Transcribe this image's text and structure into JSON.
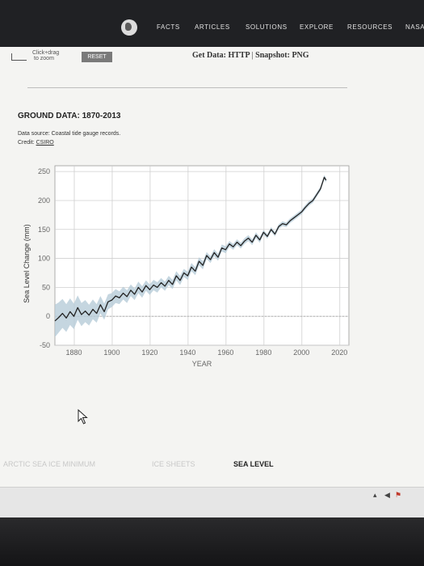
{
  "nav": {
    "items": [
      "FACTS",
      "ARTICLES",
      "SOLUTIONS",
      "EXPLORE",
      "RESOURCES",
      "NASA"
    ]
  },
  "toolbar": {
    "zoom_hint_line1": "Click+drag",
    "zoom_hint_line2": "to zoom",
    "reset_label": "RESET",
    "get_data_label": "Get Data:",
    "http_label": "HTTP",
    "separator": "|",
    "snapshot_label": "Snapshot:",
    "png_label": "PNG"
  },
  "panel": {
    "title": "GROUND DATA: 1870-2013",
    "source": "Data source: Coastal tide gauge records.",
    "credit_label": "Credit:",
    "credit_link": "CSIRO"
  },
  "chart_data": {
    "type": "line",
    "title": "",
    "xlabel": "YEAR",
    "ylabel": "Sea Level Change (mm)",
    "xlim": [
      1870,
      2025
    ],
    "ylim": [
      -50,
      260
    ],
    "x_ticks": [
      1880,
      1900,
      1920,
      1940,
      1960,
      1980,
      2000,
      2020
    ],
    "y_ticks": [
      -50,
      0,
      50,
      100,
      150,
      200,
      250
    ],
    "grid": true,
    "zero_reference_line": true,
    "series": [
      {
        "color": "#222222",
        "band_color": "#b7ccd8",
        "x": [
          1870,
          1872,
          1874,
          1876,
          1878,
          1880,
          1882,
          1884,
          1886,
          1888,
          1890,
          1892,
          1894,
          1896,
          1898,
          1900,
          1902,
          1904,
          1906,
          1908,
          1910,
          1912,
          1914,
          1916,
          1918,
          1920,
          1922,
          1924,
          1926,
          1928,
          1930,
          1932,
          1934,
          1936,
          1938,
          1940,
          1942,
          1944,
          1946,
          1948,
          1950,
          1952,
          1954,
          1956,
          1958,
          1960,
          1962,
          1964,
          1966,
          1968,
          1970,
          1972,
          1974,
          1976,
          1978,
          1980,
          1982,
          1984,
          1986,
          1988,
          1990,
          1992,
          1994,
          1996,
          1998,
          2000,
          2002,
          2004,
          2006,
          2008,
          2010,
          2012,
          2013
        ],
        "values": [
          -8,
          -2,
          5,
          -3,
          8,
          0,
          15,
          3,
          9,
          2,
          12,
          5,
          20,
          8,
          25,
          28,
          35,
          32,
          40,
          34,
          45,
          38,
          50,
          42,
          53,
          46,
          54,
          50,
          58,
          52,
          62,
          55,
          70,
          62,
          75,
          70,
          85,
          78,
          95,
          88,
          105,
          98,
          110,
          102,
          118,
          115,
          125,
          120,
          128,
          122,
          130,
          135,
          128,
          140,
          132,
          145,
          138,
          150,
          142,
          155,
          160,
          158,
          165,
          170,
          175,
          180,
          188,
          195,
          200,
          210,
          220,
          240,
          235
        ],
        "band": [
          28,
          26,
          25,
          24,
          23,
          22,
          21,
          20,
          19,
          18,
          17,
          16,
          15,
          14,
          13,
          12,
          12,
          11,
          11,
          11,
          10,
          10,
          10,
          10,
          9,
          9,
          9,
          9,
          8,
          8,
          8,
          8,
          8,
          8,
          7,
          7,
          7,
          7,
          7,
          7,
          6,
          6,
          6,
          6,
          6,
          6,
          5,
          5,
          5,
          5,
          5,
          5,
          5,
          5,
          5,
          4,
          4,
          4,
          4,
          4,
          4,
          4,
          4,
          4,
          4,
          4,
          4,
          4,
          4,
          4,
          4,
          4,
          4
        ]
      }
    ]
  },
  "bottom_tabs": [
    {
      "label": "ARCTIC SEA ICE MINIMUM",
      "color": "#c8c8c8"
    },
    {
      "label": "ICE SHEETS",
      "color": "#c8c8c8"
    },
    {
      "label": "SEA LEVEL",
      "color": "#222222"
    }
  ],
  "icons": {
    "globe": "globe-icon",
    "cursor": "mouse-cursor-icon",
    "tray": [
      "tray-chevron-up-icon",
      "speaker-icon",
      "flag-icon"
    ]
  }
}
